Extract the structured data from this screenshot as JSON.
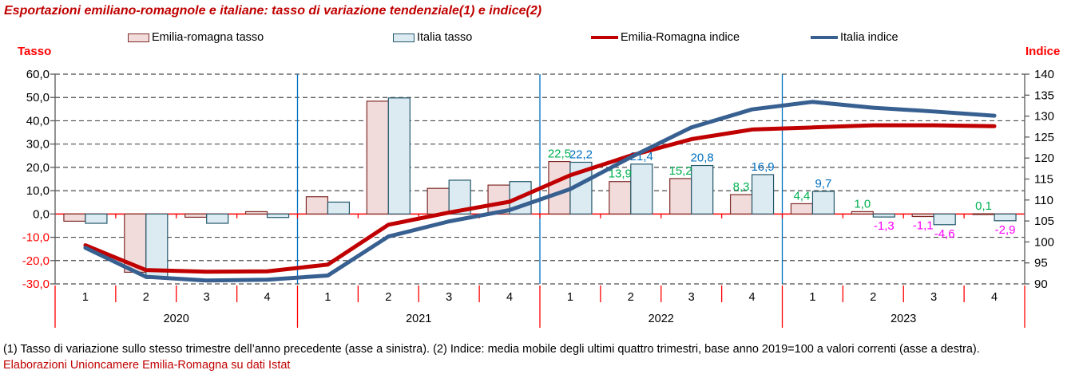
{
  "title": "Esportazioni emiliano-romagnole e italiane: tasso di variazione tendenziale(1) e indice(2)",
  "axis_titles": {
    "left": "Tasso",
    "right": "Indice"
  },
  "legend": [
    {
      "label": "Emilia-romagna tasso",
      "type": "bar",
      "fill": "#F2DCDB",
      "stroke": "#7E2B28"
    },
    {
      "label": "Italia tasso",
      "type": "bar",
      "fill": "#DCEAF2",
      "stroke": "#24586B"
    },
    {
      "label": "Emilia-Romagna indice",
      "type": "line",
      "color": "#C00000"
    },
    {
      "label": "Italia indice",
      "type": "line",
      "color": "#376091"
    }
  ],
  "footnotes": {
    "line1": "(1) Tasso di variazione sullo stesso trimestre dell’anno precedente (asse a sinistra). (2) Indice: media mobile degli ultimi quattro trimestri, base anno 2019=100 a valori correnti (asse a destra).",
    "line2": "Elaborazioni Unioncamere Emilia-Romagna su dati Istat"
  },
  "chart_data": {
    "type": "bar",
    "subtype": "combo-bar-line-dual-axis",
    "title": "Esportazioni emiliano-romagnole e italiane: tasso di variazione tendenziale(1) e indice(2)",
    "years": [
      "2020",
      "2021",
      "2022",
      "2023"
    ],
    "quarters": [
      "1",
      "2",
      "3",
      "4"
    ],
    "left_axis": {
      "label": "Tasso",
      "min": -30,
      "max": 60,
      "step": 10,
      "tick_suffix_decimal": true
    },
    "right_axis": {
      "label": "Indice",
      "min": 90,
      "max": 140,
      "step": 5
    },
    "grid": "dashed-horizontal",
    "legend_position": "top",
    "series": [
      {
        "name": "Emilia-romagna tasso",
        "type": "bar",
        "axis": "left",
        "fill": "#F2DCDB",
        "stroke": "#7E2B28",
        "values": [
          -3.1,
          -25.0,
          -1.4,
          1.0,
          7.4,
          48.4,
          11.0,
          12.4,
          22.5,
          13.9,
          15.2,
          8.3,
          4.4,
          1.0,
          -1.1,
          0.1
        ],
        "labels": [
          null,
          null,
          null,
          null,
          null,
          null,
          null,
          null,
          "22,5",
          "13,9",
          "15,2",
          "8,3",
          "4,4",
          "1,0",
          "-1,1",
          "0,1"
        ]
      },
      {
        "name": "Italia tasso",
        "type": "bar",
        "axis": "left",
        "fill": "#DCEAF2",
        "stroke": "#24586B",
        "values": [
          -4.0,
          -27.7,
          -4.0,
          -1.5,
          5.1,
          49.8,
          14.5,
          13.9,
          22.2,
          21.4,
          20.8,
          16.9,
          9.7,
          -1.3,
          -4.6,
          -2.9
        ],
        "labels": [
          null,
          null,
          null,
          null,
          null,
          null,
          null,
          null,
          "22,2",
          "21,4",
          "20,8",
          "16,9",
          "9,7",
          "-1,3",
          "-4,6",
          "-2,9"
        ]
      },
      {
        "name": "Emilia-Romagna indice",
        "type": "line",
        "axis": "right",
        "color": "#C00000",
        "values": [
          99.2,
          93.3,
          92.9,
          93.0,
          94.6,
          104.1,
          107.0,
          109.6,
          115.9,
          120.6,
          124.5,
          126.8,
          127.3,
          127.8,
          127.8,
          127.6
        ]
      },
      {
        "name": "Italia indice",
        "type": "line",
        "axis": "right",
        "color": "#376091",
        "values": [
          98.6,
          91.7,
          90.8,
          91.0,
          92.0,
          101.3,
          104.9,
          107.6,
          112.6,
          120.2,
          127.3,
          131.6,
          133.4,
          132.0,
          131.1,
          130.1
        ]
      }
    ],
    "label_colors": {
      "er_positive": "#00B050",
      "it_positive": "#0070C0",
      "negative": "#FF00FF"
    },
    "style_colors": {
      "grid": "#4D4D4D",
      "axis_line": "#595959",
      "zero_line": "#FF0000",
      "negative_tick_label": "#FF0000",
      "positive_tick_label": "#000000",
      "year_divider": "#0070C0",
      "x_separator": "#FF0000",
      "category_text": "#000000"
    }
  }
}
